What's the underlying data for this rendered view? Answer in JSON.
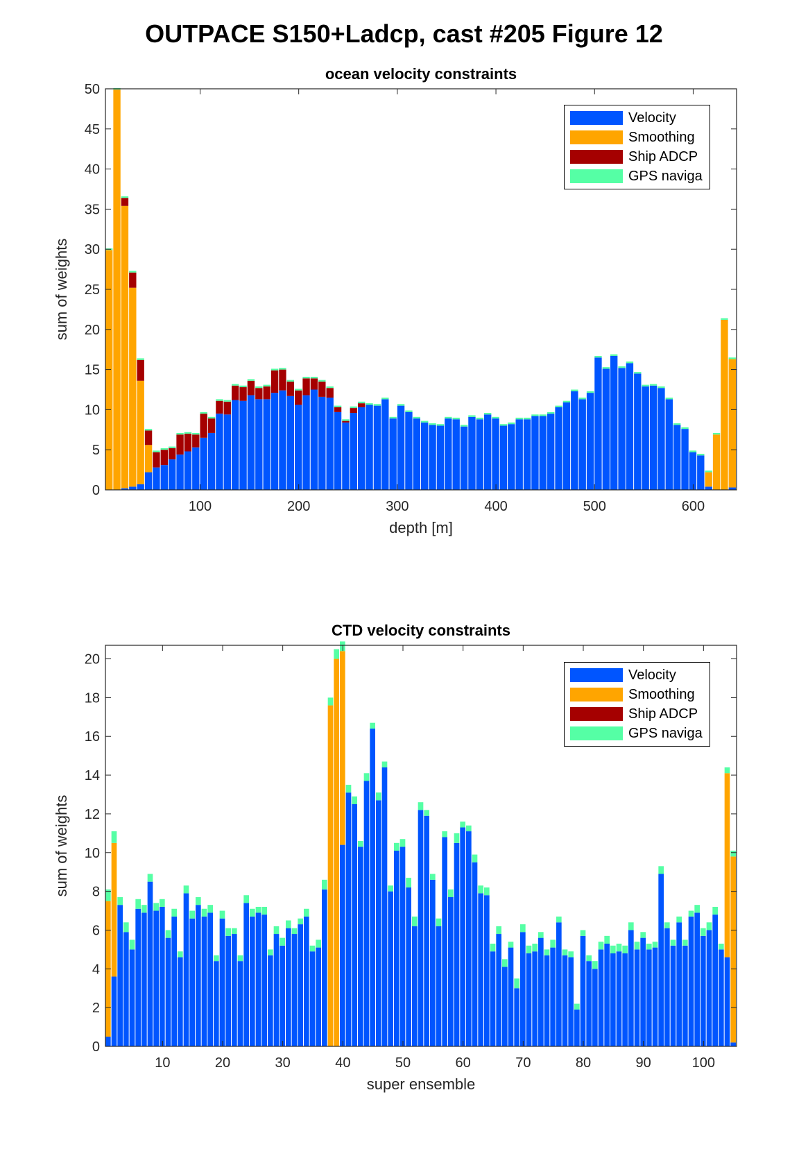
{
  "page": {
    "title": "OUTPACE S150+Ladcp, cast #205  Figure 12"
  },
  "colors": {
    "velocity": "#0055ff",
    "smoothing": "#ffa500",
    "ship_adcp": "#a50000",
    "gps": "#55ffa5"
  },
  "chart_data": [
    {
      "type": "bar",
      "stacked": true,
      "title": "ocean velocity constraints",
      "xlabel": "depth [m]",
      "ylabel": "sum of weights",
      "xlim": [
        4,
        644
      ],
      "ylim": [
        0,
        50
      ],
      "xticks": [
        100,
        200,
        300,
        400,
        500,
        600
      ],
      "yticks": [
        0,
        5,
        10,
        15,
        20,
        25,
        30,
        35,
        40,
        45,
        50
      ],
      "bin_width": 8,
      "grid": false,
      "legend_position": "top-right",
      "legend": [
        "Velocity",
        "Smoothing",
        "Ship ADCP",
        "GPS naviga"
      ],
      "x": [
        8,
        16,
        24,
        32,
        40,
        48,
        56,
        64,
        72,
        80,
        88,
        96,
        104,
        112,
        120,
        128,
        136,
        144,
        152,
        160,
        168,
        176,
        184,
        192,
        200,
        208,
        216,
        224,
        232,
        240,
        248,
        256,
        264,
        272,
        280,
        288,
        296,
        304,
        312,
        320,
        328,
        336,
        344,
        352,
        360,
        368,
        376,
        384,
        392,
        400,
        408,
        416,
        424,
        432,
        440,
        448,
        456,
        464,
        472,
        480,
        488,
        496,
        504,
        512,
        520,
        528,
        536,
        544,
        552,
        560,
        568,
        576,
        584,
        592,
        600,
        608,
        616,
        624,
        632,
        640
      ],
      "series": [
        {
          "name": "Velocity",
          "values": [
            0,
            0,
            0.2,
            0.4,
            0.7,
            2.2,
            2.8,
            3.1,
            3.8,
            4.4,
            4.8,
            5.3,
            6.5,
            7.1,
            9.5,
            9.4,
            11.2,
            11.1,
            11.8,
            11.3,
            11.3,
            12.1,
            12.4,
            11.7,
            10.6,
            11.8,
            12.5,
            11.6,
            11.5,
            9.7,
            8.4,
            9.6,
            10.3,
            10.6,
            10.5,
            11.3,
            8.9,
            10.5,
            9.7,
            8.9,
            8.4,
            8.1,
            8.0,
            8.9,
            8.8,
            7.9,
            9.1,
            8.8,
            9.4,
            8.9,
            8.0,
            8.2,
            8.8,
            8.8,
            9.2,
            9.2,
            9.5,
            10.3,
            10.9,
            12.3,
            11.3,
            12.1,
            16.5,
            15.1,
            16.7,
            15.2,
            15.8,
            14.5,
            12.9,
            13.0,
            12.7,
            11.3,
            8.1,
            7.6,
            4.7,
            4.3,
            0.4,
            0,
            0,
            0.3
          ]
        },
        {
          "name": "Smoothing",
          "values": [
            29.9,
            49.9,
            35.2,
            24.8,
            12.9,
            3.4,
            0,
            0,
            0,
            0,
            0,
            0,
            0,
            0,
            0,
            0,
            0,
            0,
            0,
            0,
            0,
            0,
            0,
            0,
            0,
            0,
            0,
            0,
            0,
            0,
            0,
            0,
            0,
            0,
            0,
            0,
            0,
            0,
            0,
            0,
            0,
            0,
            0,
            0,
            0,
            0,
            0,
            0,
            0,
            0,
            0,
            0,
            0,
            0,
            0,
            0,
            0,
            0,
            0,
            0,
            0,
            0,
            0,
            0,
            0,
            0,
            0,
            0,
            0,
            0,
            0,
            0,
            0,
            0,
            0,
            0,
            1.8,
            6.9,
            21.2,
            16.0
          ]
        },
        {
          "name": "Ship ADCP",
          "values": [
            0,
            0,
            1.0,
            1.9,
            2.6,
            1.8,
            1.9,
            1.9,
            1.4,
            2.5,
            2.2,
            1.6,
            3.0,
            1.8,
            1.6,
            1.6,
            1.8,
            1.7,
            1.8,
            1.4,
            1.6,
            2.8,
            2.6,
            1.8,
            1.8,
            2.1,
            1.4,
            1.9,
            1.2,
            0.6,
            0.2,
            0.6,
            0.5,
            0,
            0,
            0,
            0,
            0,
            0,
            0,
            0,
            0,
            0,
            0,
            0,
            0,
            0,
            0,
            0,
            0,
            0,
            0,
            0,
            0,
            0,
            0,
            0,
            0,
            0,
            0,
            0,
            0,
            0,
            0,
            0,
            0,
            0,
            0,
            0,
            0,
            0,
            0,
            0,
            0,
            0,
            0,
            0,
            0,
            0,
            0
          ]
        },
        {
          "name": "GPS naviga",
          "values": [
            0.2,
            0.2,
            0.2,
            0.2,
            0.2,
            0.2,
            0.2,
            0.2,
            0.2,
            0.2,
            0.2,
            0.2,
            0.2,
            0.2,
            0.2,
            0.2,
            0.2,
            0.2,
            0.2,
            0.2,
            0.2,
            0.2,
            0.2,
            0.2,
            0.2,
            0.2,
            0.2,
            0.2,
            0.2,
            0.2,
            0.2,
            0.2,
            0.2,
            0.2,
            0.2,
            0.2,
            0.2,
            0.2,
            0.2,
            0.2,
            0.2,
            0.2,
            0.2,
            0.2,
            0.2,
            0.2,
            0.2,
            0.2,
            0.2,
            0.2,
            0.2,
            0.2,
            0.2,
            0.2,
            0.2,
            0.2,
            0.2,
            0.2,
            0.2,
            0.2,
            0.2,
            0.2,
            0.2,
            0.2,
            0.2,
            0.2,
            0.2,
            0.2,
            0.2,
            0.2,
            0.2,
            0.2,
            0.2,
            0.2,
            0.2,
            0.2,
            0.2,
            0.2,
            0.2,
            0.2
          ]
        }
      ]
    },
    {
      "type": "bar",
      "stacked": true,
      "title": "CTD velocity constraints",
      "xlabel": "super ensemble",
      "ylabel": "sum of weights",
      "xlim": [
        0.5,
        105.5
      ],
      "ylim": [
        0,
        20.7
      ],
      "xticks": [
        10,
        20,
        30,
        40,
        50,
        60,
        70,
        80,
        90,
        100
      ],
      "yticks": [
        0,
        2,
        4,
        6,
        8,
        10,
        12,
        14,
        16,
        18,
        20
      ],
      "bin_width": 1,
      "grid": false,
      "legend_position": "top-right",
      "legend": [
        "Velocity",
        "Smoothing",
        "Ship ADCP",
        "GPS naviga"
      ],
      "x": [
        1,
        2,
        3,
        4,
        5,
        6,
        7,
        8,
        9,
        10,
        11,
        12,
        13,
        14,
        15,
        16,
        17,
        18,
        19,
        20,
        21,
        22,
        23,
        24,
        25,
        26,
        27,
        28,
        29,
        30,
        31,
        32,
        33,
        34,
        35,
        36,
        37,
        38,
        39,
        40,
        41,
        42,
        43,
        44,
        45,
        46,
        47,
        48,
        49,
        50,
        51,
        52,
        53,
        54,
        55,
        56,
        57,
        58,
        59,
        60,
        61,
        62,
        63,
        64,
        65,
        66,
        67,
        68,
        69,
        70,
        71,
        72,
        73,
        74,
        75,
        76,
        77,
        78,
        79,
        80,
        81,
        82,
        83,
        84,
        85,
        86,
        87,
        88,
        89,
        90,
        91,
        92,
        93,
        94,
        95,
        96,
        97,
        98,
        99,
        100,
        101,
        102,
        103,
        104,
        105
      ],
      "series": [
        {
          "name": "Velocity",
          "values": [
            0.5,
            3.6,
            7.3,
            5.9,
            5.0,
            7.1,
            6.9,
            8.5,
            7.0,
            7.2,
            5.6,
            6.7,
            4.6,
            7.9,
            6.6,
            7.3,
            6.7,
            6.9,
            4.4,
            6.6,
            5.7,
            5.8,
            4.4,
            7.4,
            6.7,
            6.9,
            6.8,
            4.7,
            5.8,
            5.2,
            6.1,
            5.8,
            6.3,
            6.7,
            4.9,
            5.1,
            8.1,
            0,
            0,
            10.4,
            13.1,
            12.5,
            10.3,
            13.7,
            16.4,
            12.7,
            14.4,
            8.0,
            10.1,
            10.3,
            8.2,
            6.2,
            12.2,
            11.9,
            8.6,
            6.2,
            10.8,
            7.7,
            10.5,
            11.3,
            11.1,
            9.5,
            7.9,
            7.8,
            4.9,
            5.8,
            4.1,
            5.1,
            3.0,
            5.9,
            4.8,
            4.9,
            5.6,
            4.7,
            5.1,
            6.4,
            4.7,
            4.6,
            1.9,
            5.7,
            4.4,
            4.0,
            5.0,
            5.3,
            4.8,
            4.9,
            4.8,
            6.0,
            5.0,
            5.6,
            5.0,
            5.1,
            8.9,
            6.1,
            5.2,
            6.4,
            5.2,
            6.7,
            6.9,
            5.7,
            6.0,
            6.8,
            5.0,
            4.6,
            0.2
          ]
        },
        {
          "name": "Smoothing",
          "values": [
            7.0,
            6.9,
            0,
            0,
            0,
            0,
            0,
            0,
            0,
            0,
            0,
            0,
            0,
            0,
            0,
            0,
            0,
            0,
            0,
            0,
            0,
            0,
            0,
            0,
            0,
            0,
            0,
            0,
            0,
            0,
            0,
            0,
            0,
            0,
            0,
            0,
            0,
            17.6,
            20.0,
            10.0,
            0,
            0,
            0,
            0,
            0,
            0,
            0,
            0,
            0,
            0,
            0,
            0,
            0,
            0,
            0,
            0,
            0,
            0,
            0,
            0,
            0,
            0,
            0,
            0,
            0,
            0,
            0,
            0,
            0,
            0,
            0,
            0,
            0,
            0,
            0,
            0,
            0,
            0,
            0,
            0,
            0,
            0,
            0,
            0,
            0,
            0,
            0,
            0,
            0,
            0,
            0,
            0,
            0,
            0,
            0,
            0,
            0,
            0,
            0,
            0,
            0,
            0,
            0,
            9.5,
            9.6
          ]
        },
        {
          "name": "Ship ADCP",
          "values": [
            0,
            0,
            0,
            0,
            0,
            0,
            0,
            0,
            0,
            0,
            0,
            0,
            0,
            0,
            0,
            0,
            0,
            0,
            0,
            0,
            0,
            0,
            0,
            0,
            0,
            0,
            0,
            0,
            0,
            0,
            0,
            0,
            0,
            0,
            0,
            0,
            0,
            0,
            0,
            0,
            0,
            0,
            0,
            0,
            0,
            0,
            0,
            0,
            0,
            0,
            0,
            0,
            0,
            0,
            0,
            0,
            0,
            0,
            0,
            0,
            0,
            0,
            0,
            0,
            0,
            0,
            0,
            0,
            0,
            0,
            0,
            0,
            0,
            0,
            0,
            0,
            0,
            0,
            0,
            0,
            0,
            0,
            0,
            0,
            0,
            0,
            0,
            0,
            0,
            0,
            0,
            0,
            0,
            0,
            0,
            0,
            0,
            0,
            0,
            0,
            0,
            0,
            0,
            0,
            0
          ]
        },
        {
          "name": "GPS naviga",
          "values": [
            0.6,
            0.6,
            0.4,
            0.5,
            0.5,
            0.5,
            0.4,
            0.4,
            0.4,
            0.4,
            0.4,
            0.4,
            0.3,
            0.4,
            0.4,
            0.4,
            0.4,
            0.4,
            0.3,
            0.4,
            0.4,
            0.3,
            0.3,
            0.4,
            0.4,
            0.3,
            0.4,
            0.3,
            0.4,
            0.4,
            0.4,
            0.3,
            0.3,
            0.4,
            0.3,
            0.4,
            0.5,
            0.4,
            0.5,
            0.5,
            0.4,
            0.4,
            0.3,
            0.4,
            0.3,
            0.4,
            0.3,
            0.3,
            0.4,
            0.4,
            0.5,
            0.5,
            0.4,
            0.3,
            0.3,
            0.4,
            0.3,
            0.4,
            0.5,
            0.3,
            0.3,
            0.4,
            0.4,
            0.4,
            0.4,
            0.4,
            0.4,
            0.3,
            0.5,
            0.4,
            0.4,
            0.4,
            0.3,
            0.3,
            0.4,
            0.3,
            0.3,
            0.3,
            0.3,
            0.3,
            0.3,
            0.4,
            0.4,
            0.4,
            0.4,
            0.4,
            0.4,
            0.4,
            0.4,
            0.3,
            0.3,
            0.3,
            0.4,
            0.3,
            0.3,
            0.3,
            0.3,
            0.3,
            0.4,
            0.4,
            0.4,
            0.4,
            0.3,
            0.3,
            0.3
          ]
        }
      ]
    }
  ]
}
